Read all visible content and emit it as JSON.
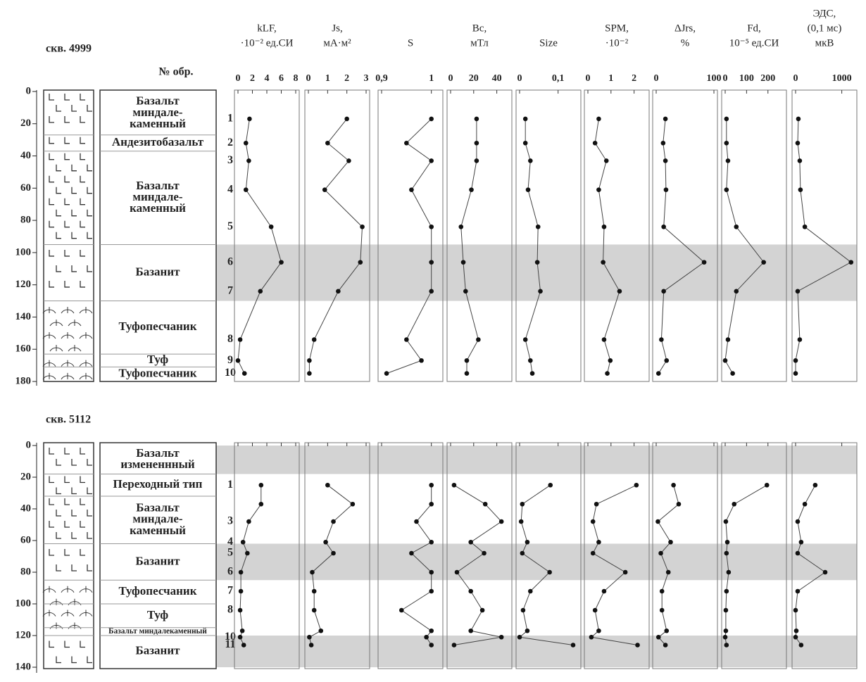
{
  "chart_data": {
    "type": "well-log",
    "sample_header": "№ обр.",
    "params": [
      {
        "title": [
          "kLF,",
          "·10⁻² ед.СИ"
        ],
        "xlim": [
          0,
          8
        ],
        "xticks": [
          0,
          2,
          4,
          6,
          8
        ]
      },
      {
        "title": [
          "Js,",
          "мА·м²"
        ],
        "xlim": [
          0,
          3
        ],
        "xticks": [
          0,
          1,
          2,
          3
        ]
      },
      {
        "title": [
          "S"
        ],
        "xlim": [
          0.9,
          1.016
        ],
        "xticks": [
          {
            "value": 0.9,
            "label": "0,9"
          },
          1
        ]
      },
      {
        "title": [
          "Bc,",
          "мТл"
        ],
        "xlim": [
          0,
          50
        ],
        "xticks": [
          0,
          20,
          40
        ]
      },
      {
        "title": [
          "Size"
        ],
        "xlim": [
          0,
          0.15
        ],
        "xticks": [
          0,
          {
            "value": 0.1,
            "label": "0,1"
          }
        ]
      },
      {
        "title": [
          "SPM,",
          "·10⁻²"
        ],
        "xlim": [
          0,
          2.5
        ],
        "xticks": [
          0,
          1,
          2
        ]
      },
      {
        "title": [
          "ΔJrs,",
          "%"
        ],
        "xlim": [
          0,
          100
        ],
        "xticks": [
          0,
          100
        ]
      },
      {
        "title": [
          "Fd,",
          "10⁻⁵ ед.СИ"
        ],
        "xlim": [
          0,
          270
        ],
        "xticks": [
          0,
          100,
          200
        ]
      },
      {
        "title": [
          "ЭДС,",
          "(0,1 мс)",
          "мкВ"
        ],
        "xlim": [
          0,
          1250
        ],
        "xticks": [
          0,
          1000
        ]
      }
    ],
    "wells": [
      {
        "name": "скв. 4999",
        "ylim": [
          0,
          180
        ],
        "yticks": [
          0,
          20,
          40,
          60,
          80,
          100,
          120,
          140,
          160,
          180
        ],
        "tick_labels": true,
        "shaded": [
          [
            95,
            130
          ]
        ],
        "units": [
          {
            "label": [
              "Базальт",
              "миндале-",
              "каменный"
            ],
            "top": 0,
            "bottom": 27,
            "pattern": "basalt"
          },
          {
            "label": [
              "Андезитобазальт"
            ],
            "top": 27,
            "bottom": 37,
            "pattern": "basalt"
          },
          {
            "label": [
              "Базальт",
              "миндале-",
              "каменный"
            ],
            "top": 37,
            "bottom": 95,
            "pattern": "basalt"
          },
          {
            "label": [
              "Базанит"
            ],
            "top": 95,
            "bottom": 130,
            "pattern": "basanite"
          },
          {
            "label": [
              "Туфопесчаник"
            ],
            "top": 130,
            "bottom": 163,
            "pattern": "tuff"
          },
          {
            "label": [
              "Туф"
            ],
            "top": 163,
            "bottom": 171,
            "pattern": "tuff"
          },
          {
            "label": [
              "Туфопесчаник"
            ],
            "top": 171,
            "bottom": 180,
            "pattern": "tuff"
          }
        ],
        "samples": [
          "1",
          "2",
          "3",
          "4",
          "5",
          "6",
          "7",
          "8",
          "9",
          "10"
        ],
        "depth": [
          17,
          32,
          43,
          61,
          84,
          106,
          124,
          154,
          167,
          175
        ],
        "series": [
          [
            1.6,
            1.1,
            1.5,
            1.1,
            4.6,
            6,
            3.1,
            0.3,
            0,
            0.9
          ],
          [
            2,
            1,
            2.1,
            0.85,
            2.8,
            2.7,
            1.55,
            0.3,
            0.05,
            0.05
          ],
          [
            1,
            0.95,
            1,
            0.96,
            1,
            1,
            1,
            0.95,
            0.98,
            0.91
          ],
          [
            22.5,
            22.5,
            22.5,
            18,
            9,
            11,
            13,
            24,
            14,
            14
          ],
          [
            0.015,
            0.015,
            0.028,
            0.022,
            0.048,
            0.046,
            0.054,
            0.015,
            0.028,
            0.033
          ],
          [
            0.47,
            0.31,
            0.8,
            0.47,
            0.7,
            0.66,
            1.37,
            0.7,
            0.97,
            0.84
          ],
          [
            16,
            12,
            16,
            17,
            13,
            83,
            13,
            9,
            18,
            4
          ],
          [
            6,
            6,
            13,
            6,
            52,
            180,
            52,
            13,
            0,
            35
          ],
          [
            60,
            45,
            90,
            105,
            200,
            1200,
            45,
            90,
            0,
            0
          ]
        ]
      },
      {
        "name": "скв. 5112",
        "ylim": [
          0,
          140
        ],
        "yticks": [
          0,
          20,
          40,
          60,
          80,
          100,
          120,
          140
        ],
        "tick_labels": false,
        "shaded": [
          [
            0,
            18
          ],
          [
            62,
            85
          ],
          [
            120,
            140
          ]
        ],
        "units": [
          {
            "label": [
              "Базальт",
              "измененнный"
            ],
            "top": 0,
            "bottom": 18,
            "pattern": "basalt"
          },
          {
            "label": [
              "Переходный тип"
            ],
            "top": 18,
            "bottom": 32,
            "pattern": "basalt"
          },
          {
            "label": [
              "Базальт",
              "миндале-",
              "каменный"
            ],
            "top": 32,
            "bottom": 62,
            "pattern": "basalt"
          },
          {
            "label": [
              "Базанит"
            ],
            "top": 62,
            "bottom": 85,
            "pattern": "basanite"
          },
          {
            "label": [
              "Туфопесчаник"
            ],
            "top": 85,
            "bottom": 100,
            "pattern": "tuff"
          },
          {
            "label": [
              "Туф"
            ],
            "top": 100,
            "bottom": 115,
            "pattern": "tuff"
          },
          {
            "label": [
              "Базальт миндалекаменный"
            ],
            "top": 115,
            "bottom": 120,
            "pattern": "basalt"
          },
          {
            "label": [
              "Базанит"
            ],
            "top": 120,
            "bottom": 140,
            "pattern": "basanite"
          }
        ],
        "samples": [
          "1",
          null,
          "3",
          "4",
          "5",
          "6",
          "7",
          "8",
          null,
          "10",
          "11"
        ],
        "depth": [
          25,
          37,
          48,
          61,
          68,
          80,
          92,
          104,
          117,
          121,
          126
        ],
        "series": [
          [
            3.2,
            3.2,
            1.5,
            0.7,
            1.3,
            0.4,
            0.4,
            0.3,
            0.6,
            0.3,
            0.8
          ],
          [
            1,
            2.3,
            1.3,
            0.9,
            1.3,
            0.2,
            0.3,
            0.3,
            0.65,
            0.05,
            0.15
          ],
          [
            1,
            1,
            0.97,
            1,
            0.96,
            1,
            1,
            0.94,
            1,
            0.99,
            1
          ],
          [
            3,
            30,
            44,
            17.5,
            29,
            5.5,
            17.5,
            27.5,
            17.5,
            44,
            3
          ],
          [
            0.08,
            0.007,
            0.004,
            0.02,
            0.007,
            0.078,
            0.028,
            0.009,
            0.02,
            0,
            0.139
          ],
          [
            2.1,
            0.37,
            0.22,
            0.47,
            0.22,
            1.62,
            0.7,
            0.31,
            0.47,
            0.15,
            2.15
          ],
          [
            30,
            39,
            3,
            25,
            8,
            21,
            10,
            10,
            18,
            4,
            16
          ],
          [
            195,
            42,
            3,
            10,
            6,
            16,
            6,
            3,
            3,
            0,
            6
          ],
          [
            425,
            200,
            45,
            120,
            45,
            640,
            45,
            0,
            15,
            0,
            120
          ]
        ]
      }
    ]
  }
}
